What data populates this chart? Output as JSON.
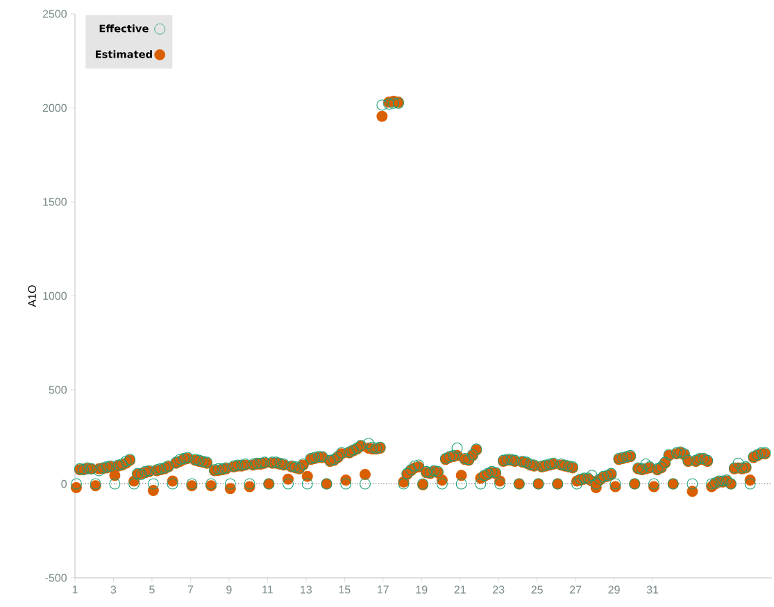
{
  "chart_data": {
    "type": "scatter",
    "ylabel": "A1O",
    "xlim": [
      1,
      37.2
    ],
    "ylim": [
      -500,
      2500
    ],
    "xticks": [
      1,
      3,
      5,
      7,
      9,
      11,
      13,
      15,
      17,
      19,
      21,
      23,
      25,
      27,
      29,
      31
    ],
    "yticks": [
      -500,
      0,
      500,
      1000,
      1500,
      2000,
      2500
    ],
    "marker": "circle",
    "legend": "top left",
    "grid": false,
    "ref_lines": [
      {
        "axis": "y",
        "value": 0,
        "color": "#333333",
        "line_style": "dotted"
      }
    ],
    "series": [
      {
        "name": "Effective",
        "color": "#1b9e77",
        "x": [
          1.07,
          1.25,
          1.45,
          1.65,
          1.85,
          2.07,
          2.25,
          2.45,
          2.65,
          2.85,
          3.07,
          3.25,
          3.45,
          3.65,
          3.85,
          4.07,
          4.25,
          4.45,
          4.65,
          4.85,
          5.07,
          5.25,
          5.45,
          5.65,
          5.85,
          6.07,
          6.25,
          6.45,
          6.65,
          6.85,
          7.07,
          7.25,
          7.45,
          7.65,
          7.85,
          8.07,
          8.25,
          8.45,
          8.65,
          8.85,
          9.07,
          9.25,
          9.45,
          9.65,
          9.85,
          10.07,
          10.25,
          10.45,
          10.65,
          10.85,
          11.07,
          11.25,
          11.45,
          11.65,
          11.85,
          12.07,
          12.25,
          12.45,
          12.65,
          12.85,
          13.07,
          13.25,
          13.45,
          13.65,
          13.85,
          14.07,
          14.25,
          14.45,
          14.65,
          14.85,
          15.07,
          15.25,
          15.45,
          15.65,
          15.85,
          16.07,
          16.25,
          16.45,
          16.65,
          16.85,
          16.95,
          17.3,
          17.55,
          17.8,
          18.07,
          18.25,
          18.45,
          18.65,
          18.85,
          19.07,
          19.25,
          19.45,
          19.65,
          19.85,
          20.07,
          20.25,
          20.45,
          20.65,
          20.85,
          21.07,
          21.25,
          21.45,
          21.65,
          21.85,
          22.07,
          22.25,
          22.45,
          22.65,
          22.85,
          23.07,
          23.25,
          23.45,
          23.65,
          23.85,
          24.07,
          24.25,
          24.45,
          24.65,
          24.85,
          25.07,
          25.25,
          25.45,
          25.65,
          25.85,
          26.07,
          26.25,
          26.45,
          26.65,
          26.85,
          27.07,
          27.25,
          27.45,
          27.65,
          27.85,
          28.07,
          28.25,
          28.45,
          28.65,
          28.85,
          29.07,
          29.25,
          29.45,
          29.65,
          29.85,
          30.07,
          30.25,
          30.45,
          30.65,
          30.85,
          31.07,
          31.25,
          31.45,
          31.65,
          31.85,
          32.07,
          32.25,
          32.45,
          32.65,
          32.85,
          33.07,
          33.25,
          33.45,
          33.65,
          33.85,
          34.07,
          34.25,
          34.45,
          34.65,
          34.85,
          35.07,
          35.25,
          35.45,
          35.65,
          35.85,
          36.07,
          36.25,
          36.45,
          36.65,
          36.85
        ],
        "values": [
          0,
          80,
          75,
          85,
          80,
          0,
          70,
          85,
          90,
          95,
          0,
          100,
          105,
          120,
          130,
          0,
          55,
          50,
          65,
          70,
          0,
          75,
          80,
          85,
          95,
          0,
          115,
          130,
          135,
          140,
          0,
          130,
          125,
          120,
          115,
          0,
          75,
          80,
          80,
          85,
          0,
          95,
          100,
          100,
          105,
          0,
          105,
          110,
          110,
          115,
          0,
          115,
          115,
          110,
          105,
          0,
          95,
          90,
          85,
          105,
          0,
          135,
          140,
          145,
          145,
          0,
          125,
          130,
          145,
          165,
          0,
          170,
          180,
          190,
          205,
          0,
          215,
          195,
          190,
          195,
          2015,
          2020,
          2025,
          2025,
          0,
          55,
          75,
          95,
          100,
          0,
          65,
          60,
          70,
          65,
          0,
          135,
          145,
          150,
          190,
          0,
          135,
          130,
          155,
          185,
          0,
          45,
          55,
          65,
          60,
          0,
          125,
          130,
          130,
          125,
          0,
          120,
          115,
          105,
          100,
          0,
          95,
          100,
          105,
          110,
          0,
          105,
          100,
          95,
          90,
          0,
          25,
          30,
          30,
          45,
          0,
          25,
          40,
          45,
          55,
          0,
          135,
          140,
          145,
          150,
          0,
          85,
          80,
          105,
          90,
          0,
          80,
          90,
          115,
          155,
          0,
          165,
          170,
          160,
          125,
          0,
          125,
          135,
          135,
          125,
          0,
          5,
          15,
          15,
          20,
          0,
          85,
          110,
          85,
          90,
          0,
          145,
          155,
          165,
          165
        ]
      },
      {
        "name": "Estimated",
        "color": "#d95f02",
        "x": [
          1.07,
          1.25,
          1.45,
          1.65,
          1.85,
          2.07,
          2.25,
          2.45,
          2.65,
          2.85,
          3.07,
          3.25,
          3.45,
          3.65,
          3.85,
          4.07,
          4.25,
          4.45,
          4.65,
          4.85,
          5.07,
          5.25,
          5.45,
          5.65,
          5.85,
          6.07,
          6.25,
          6.45,
          6.65,
          6.85,
          7.07,
          7.25,
          7.45,
          7.65,
          7.85,
          8.07,
          8.25,
          8.45,
          8.65,
          8.85,
          9.07,
          9.25,
          9.45,
          9.65,
          9.85,
          10.07,
          10.25,
          10.45,
          10.65,
          10.85,
          11.07,
          11.25,
          11.45,
          11.65,
          11.85,
          12.07,
          12.25,
          12.45,
          12.65,
          12.85,
          13.07,
          13.25,
          13.45,
          13.65,
          13.85,
          14.07,
          14.25,
          14.45,
          14.65,
          14.85,
          15.07,
          15.25,
          15.45,
          15.65,
          15.85,
          16.07,
          16.25,
          16.45,
          16.65,
          16.85,
          16.95,
          17.3,
          17.55,
          17.8,
          18.07,
          18.25,
          18.45,
          18.65,
          18.85,
          19.07,
          19.25,
          19.45,
          19.65,
          19.85,
          20.07,
          20.25,
          20.45,
          20.65,
          20.85,
          21.07,
          21.25,
          21.45,
          21.65,
          21.85,
          22.07,
          22.25,
          22.45,
          22.65,
          22.85,
          23.07,
          23.25,
          23.45,
          23.65,
          23.85,
          24.07,
          24.25,
          24.45,
          24.65,
          24.85,
          25.07,
          25.25,
          25.45,
          25.65,
          25.85,
          26.07,
          26.25,
          26.45,
          26.65,
          26.85,
          27.07,
          27.25,
          27.45,
          27.65,
          27.85,
          28.07,
          28.25,
          28.45,
          28.65,
          28.85,
          29.07,
          29.25,
          29.45,
          29.65,
          29.85,
          30.07,
          30.25,
          30.45,
          30.65,
          30.85,
          31.07,
          31.25,
          31.45,
          31.65,
          31.85,
          32.07,
          32.25,
          32.45,
          32.65,
          32.85,
          33.07,
          33.25,
          33.45,
          33.65,
          33.85,
          34.07,
          34.25,
          34.45,
          34.65,
          34.85,
          35.07,
          35.25,
          35.45,
          35.65,
          35.85,
          36.07,
          36.25,
          36.45,
          36.65,
          36.85
        ],
        "values": [
          -20,
          75,
          78,
          80,
          80,
          -10,
          80,
          82,
          85,
          90,
          45,
          95,
          100,
          110,
          125,
          15,
          50,
          55,
          60,
          65,
          -35,
          70,
          75,
          80,
          90,
          15,
          110,
          120,
          130,
          135,
          -10,
          125,
          120,
          115,
          110,
          -10,
          70,
          72,
          75,
          80,
          -25,
          90,
          95,
          95,
          100,
          -15,
          100,
          105,
          105,
          110,
          0,
          110,
          110,
          105,
          100,
          25,
          90,
          85,
          80,
          100,
          40,
          130,
          135,
          140,
          140,
          0,
          120,
          125,
          140,
          160,
          20,
          165,
          175,
          185,
          200,
          50,
          190,
          185,
          185,
          190,
          1955,
          2030,
          2035,
          2030,
          10,
          50,
          70,
          85,
          90,
          -5,
          60,
          55,
          65,
          60,
          20,
          130,
          140,
          145,
          150,
          45,
          130,
          125,
          150,
          180,
          30,
          40,
          50,
          60,
          55,
          15,
          120,
          125,
          125,
          120,
          0,
          115,
          110,
          100,
          95,
          0,
          90,
          95,
          100,
          105,
          0,
          100,
          95,
          90,
          85,
          15,
          20,
          25,
          25,
          15,
          -20,
          20,
          35,
          40,
          50,
          -15,
          130,
          135,
          140,
          145,
          0,
          80,
          75,
          80,
          85,
          -15,
          75,
          85,
          110,
          150,
          0,
          160,
          165,
          155,
          120,
          -40,
          120,
          130,
          130,
          120,
          -15,
          0,
          10,
          10,
          15,
          0,
          80,
          85,
          80,
          85,
          20,
          140,
          150,
          160,
          160
        ]
      }
    ]
  }
}
